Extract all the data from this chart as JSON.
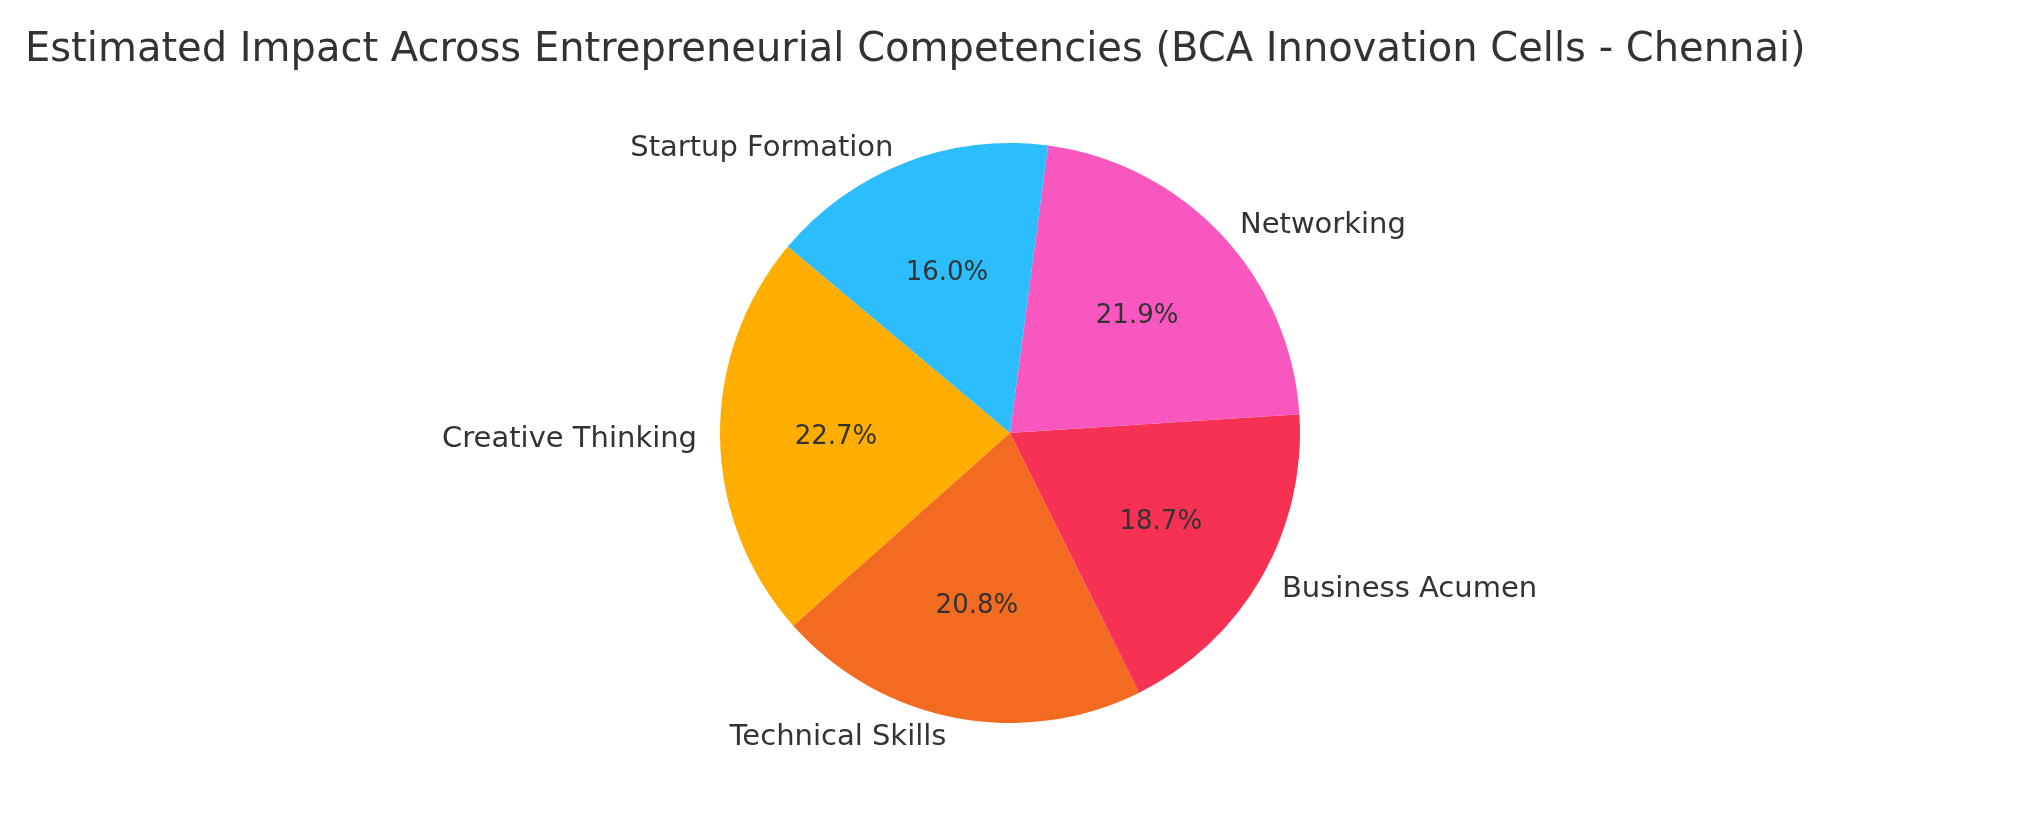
{
  "chart_data": {
    "type": "pie",
    "title": "Estimated Impact Across Entrepreneurial Competencies (BCA Innovation Cells - Chennai)",
    "categories": [
      "Creative Thinking",
      "Technical Skills",
      "Business Acumen",
      "Networking",
      "Startup Formation"
    ],
    "values": [
      22.7,
      20.8,
      18.7,
      21.9,
      16.0
    ],
    "colors": [
      "#ffae00",
      "#f26b21",
      "#f73153",
      "#f957c0",
      "#2bbdfd"
    ],
    "value_labels": [
      "22.7%",
      "20.8%",
      "18.7%",
      "21.9%",
      "16.0%"
    ]
  }
}
